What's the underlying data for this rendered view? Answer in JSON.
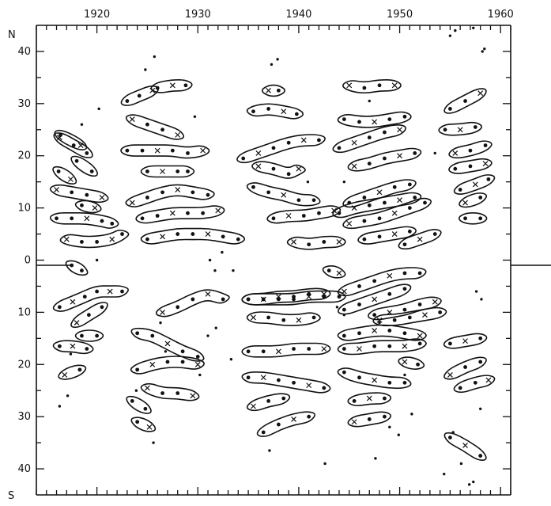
{
  "chart_data": {
    "type": "scatter",
    "title": "",
    "xlabel": "",
    "ylabel": "",
    "xlim": [
      1914,
      1961
    ],
    "ylim": [
      -45,
      45
    ],
    "x_ticks": [
      1920,
      1930,
      1940,
      1950,
      1960
    ],
    "x_tick_labels": [
      "1920",
      "1930",
      "1940",
      "1950",
      "1960"
    ],
    "y_ticks": [
      40,
      30,
      20,
      10,
      0,
      -10,
      -20,
      -30,
      -40
    ],
    "y_tick_labels": [
      "40",
      "30",
      "20",
      "10",
      "0",
      "10",
      "20",
      "30",
      "40"
    ],
    "y_pole_labels": {
      "north": "N",
      "south": "S"
    },
    "grid": false,
    "legend": "none",
    "marker_types": [
      "dot",
      "cross"
    ],
    "groups": [
      {
        "x": [
          1916.4,
          1918.4
        ],
        "y": [
          24.0,
          22.0
        ]
      },
      {
        "x": [
          1916.3,
          1917.7,
          1919.0
        ],
        "y": [
          23.5,
          22.0,
          20.5
        ]
      },
      {
        "x": [
          1918.0,
          1919.5
        ],
        "y": [
          19.0,
          17.0
        ]
      },
      {
        "x": [
          1916.2,
          1917.4
        ],
        "y": [
          17.0,
          15.5
        ]
      },
      {
        "x": [
          1916.0,
          1917.5,
          1919.0,
          1920.5
        ],
        "y": [
          13.5,
          13.0,
          12.5,
          12.0
        ]
      },
      {
        "x": [
          1916.0,
          1917.5,
          1919.0,
          1920.5,
          1921.5
        ],
        "y": [
          8.0,
          8.0,
          8.0,
          7.5,
          7.0
        ]
      },
      {
        "x": [
          1918.5,
          1919.8
        ],
        "y": [
          10.5,
          10.0
        ]
      },
      {
        "x": [
          1917.0,
          1918.5,
          1920.0,
          1921.5,
          1922.5
        ],
        "y": [
          4.0,
          3.5,
          3.5,
          4.0,
          5.0
        ]
      },
      {
        "x": [
          1917.5,
          1918.5
        ],
        "y": [
          -1.0,
          -2.0
        ]
      },
      {
        "x": [
          1916.3,
          1917.6,
          1918.8,
          1920.0,
          1921.3,
          1922.5
        ],
        "y": [
          -9.0,
          -8.0,
          -7.0,
          -6.0,
          -6.0,
          -6.0
        ]
      },
      {
        "x": [
          1918.0,
          1919.2,
          1920.5
        ],
        "y": [
          -12.0,
          -10.5,
          -9.0
        ]
      },
      {
        "x": [
          1918.5,
          1920.0
        ],
        "y": [
          -14.5,
          -14.5
        ]
      },
      {
        "x": [
          1916.3,
          1917.6,
          1919.0
        ],
        "y": [
          -16.5,
          -16.5,
          -17.0
        ]
      },
      {
        "x": [
          1916.8,
          1918.3
        ],
        "y": [
          -22.0,
          -21.0
        ]
      },
      {
        "x": [
          1923.0,
          1924.2,
          1925.5
        ],
        "y": [
          30.5,
          31.5,
          32.5
        ]
      },
      {
        "x": [
          1926.0,
          1927.5,
          1928.8
        ],
        "y": [
          33.0,
          33.5,
          33.5
        ]
      },
      {
        "x": [
          1923.5,
          1925.0,
          1926.5,
          1928.0
        ],
        "y": [
          27.0,
          26.0,
          25.0,
          24.0
        ]
      },
      {
        "x": [
          1923.0,
          1924.5,
          1926.0,
          1927.5,
          1929.0,
          1930.5
        ],
        "y": [
          21.0,
          21.0,
          21.0,
          21.0,
          20.5,
          21.0
        ]
      },
      {
        "x": [
          1925.0,
          1926.5,
          1928.0,
          1929.0
        ],
        "y": [
          17.0,
          17.0,
          17.0,
          17.0
        ]
      },
      {
        "x": [
          1923.5,
          1925.0,
          1926.5,
          1928.0,
          1929.5,
          1931.0
        ],
        "y": [
          11.0,
          12.0,
          13.0,
          13.5,
          13.0,
          12.5
        ]
      },
      {
        "x": [
          1924.5,
          1926.0,
          1927.5,
          1929.0,
          1930.5,
          1932.0
        ],
        "y": [
          8.0,
          8.5,
          9.0,
          9.0,
          9.0,
          9.5
        ]
      },
      {
        "x": [
          1925.0,
          1926.5,
          1928.0,
          1929.5,
          1931.0,
          1932.5,
          1934.0
        ],
        "y": [
          4.0,
          4.5,
          5.0,
          5.0,
          5.0,
          4.5,
          4.0
        ]
      },
      {
        "x": [
          1926.5,
          1928.0,
          1929.5,
          1931.0,
          1932.5
        ],
        "y": [
          -10.0,
          -9.0,
          -7.5,
          -6.5,
          -7.5
        ]
      },
      {
        "x": [
          1924.0,
          1925.5,
          1927.0,
          1928.5,
          1930.0
        ],
        "y": [
          -14.0,
          -14.5,
          -16.0,
          -17.5,
          -18.5
        ]
      },
      {
        "x": [
          1924.0,
          1925.5,
          1927.0,
          1928.5,
          1930.0
        ],
        "y": [
          -21.0,
          -20.0,
          -19.5,
          -19.5,
          -20.0
        ]
      },
      {
        "x": [
          1925.0,
          1926.5,
          1928.0,
          1929.5
        ],
        "y": [
          -24.5,
          -25.5,
          -25.5,
          -26.0
        ]
      },
      {
        "x": [
          1923.5,
          1924.8
        ],
        "y": [
          -27.0,
          -28.5
        ]
      },
      {
        "x": [
          1924.0,
          1925.2
        ],
        "y": [
          -31.0,
          -32.0
        ]
      },
      {
        "x": [
          1937.0,
          1938.0
        ],
        "y": [
          32.5,
          32.5
        ]
      },
      {
        "x": [
          1935.5,
          1937.0,
          1938.5,
          1939.8
        ],
        "y": [
          28.5,
          29.0,
          28.5,
          28.0
        ]
      },
      {
        "x": [
          1934.5,
          1936.0,
          1937.5,
          1939.0,
          1940.5,
          1942.0
        ],
        "y": [
          19.5,
          20.5,
          21.5,
          22.5,
          23.0,
          23.0
        ]
      },
      {
        "x": [
          1936.0,
          1937.5,
          1939.0,
          1940.0
        ],
        "y": [
          18.0,
          17.5,
          16.5,
          17.5
        ]
      },
      {
        "x": [
          1935.5,
          1937.0,
          1938.5,
          1940.0,
          1941.5
        ],
        "y": [
          14.0,
          13.0,
          12.5,
          11.5,
          11.5
        ]
      },
      {
        "x": [
          1937.5,
          1939.0,
          1940.5,
          1942.0,
          1943.5
        ],
        "y": [
          8.0,
          8.5,
          8.5,
          9.0,
          9.5
        ]
      },
      {
        "x": [
          1939.5,
          1941.0,
          1942.5,
          1944.0
        ],
        "y": [
          3.5,
          3.0,
          3.5,
          3.5
        ]
      },
      {
        "x": [
          1935.0,
          1936.5,
          1938.0,
          1939.5,
          1941.0,
          1942.5
        ],
        "y": [
          -7.5,
          -7.5,
          -7.0,
          -7.0,
          -6.5,
          -6.5
        ]
      },
      {
        "x": [
          1935.0,
          1936.5,
          1938.0,
          1939.5,
          1941.0,
          1942.5,
          1944.0
        ],
        "y": [
          -7.5,
          -7.5,
          -7.5,
          -7.5,
          -7.0,
          -7.0,
          -7.0
        ]
      },
      {
        "x": [
          1935.5,
          1937.0,
          1938.5,
          1940.0,
          1941.5
        ],
        "y": [
          -11.0,
          -11.0,
          -11.5,
          -11.5,
          -11.0
        ]
      },
      {
        "x": [
          1935.0,
          1936.5,
          1938.0,
          1939.5,
          1941.0,
          1942.5
        ],
        "y": [
          -17.5,
          -17.5,
          -17.5,
          -17.0,
          -17.0,
          -17.0
        ]
      },
      {
        "x": [
          1935.0,
          1936.5,
          1938.0,
          1939.5,
          1941.0,
          1942.5
        ],
        "y": [
          -22.5,
          -22.5,
          -23.0,
          -23.5,
          -24.0,
          -24.5
        ]
      },
      {
        "x": [
          1935.5,
          1937.0,
          1938.5
        ],
        "y": [
          -28.0,
          -27.0,
          -26.5
        ]
      },
      {
        "x": [
          1936.5,
          1938.0,
          1939.5,
          1941.0
        ],
        "y": [
          -33.0,
          -31.5,
          -30.5,
          -30.0
        ]
      },
      {
        "x": [
          1943.0,
          1944.0
        ],
        "y": [
          -2.0,
          -2.5
        ]
      },
      {
        "x": [
          1945.0,
          1946.5,
          1948.0,
          1949.5
        ],
        "y": [
          33.5,
          33.0,
          33.5,
          33.5
        ]
      },
      {
        "x": [
          1944.5,
          1946.0,
          1947.5,
          1949.0,
          1950.5
        ],
        "y": [
          27.0,
          26.5,
          26.5,
          27.0,
          27.5
        ]
      },
      {
        "x": [
          1944.0,
          1945.5,
          1947.0,
          1948.5,
          1950.0
        ],
        "y": [
          21.5,
          22.5,
          23.5,
          24.5,
          25.0
        ]
      },
      {
        "x": [
          1945.5,
          1947.0,
          1948.5,
          1950.0,
          1951.5
        ],
        "y": [
          18.0,
          18.5,
          19.5,
          20.0,
          20.5
        ]
      },
      {
        "x": [
          1945.0,
          1946.5,
          1948.0,
          1949.5,
          1951.0
        ],
        "y": [
          11.0,
          12.0,
          13.0,
          14.0,
          14.5
        ]
      },
      {
        "x": [
          1944.0,
          1945.5,
          1947.0,
          1948.5,
          1950.0,
          1951.5
        ],
        "y": [
          9.0,
          10.0,
          10.5,
          11.0,
          11.5,
          12.0
        ]
      },
      {
        "x": [
          1945.0,
          1946.5,
          1948.0,
          1949.5,
          1951.0,
          1952.5
        ],
        "y": [
          7.0,
          7.5,
          8.0,
          9.0,
          10.0,
          11.0
        ]
      },
      {
        "x": [
          1946.5,
          1948.0,
          1949.5,
          1951.0
        ],
        "y": [
          4.0,
          4.5,
          5.0,
          5.5
        ]
      },
      {
        "x": [
          1950.5,
          1952.0,
          1953.5
        ],
        "y": [
          3.0,
          4.0,
          5.0
        ]
      },
      {
        "x": [
          1944.5,
          1946.0,
          1947.5,
          1949.0,
          1950.5,
          1952.0
        ],
        "y": [
          -6.0,
          -5.0,
          -4.0,
          -3.0,
          -2.5,
          -2.5
        ]
      },
      {
        "x": [
          1944.5,
          1946.0,
          1947.5,
          1949.0,
          1950.5
        ],
        "y": [
          -9.5,
          -8.5,
          -7.5,
          -6.5,
          -5.5
        ]
      },
      {
        "x": [
          1947.5,
          1949.0,
          1950.5,
          1952.0,
          1953.5
        ],
        "y": [
          -10.5,
          -10.0,
          -9.5,
          -8.5,
          -8.0
        ]
      },
      {
        "x": [
          1948.0,
          1949.5,
          1951.0,
          1952.5,
          1954.0
        ],
        "y": [
          -11.5,
          -11.5,
          -11.0,
          -10.5,
          -10.0
        ]
      },
      {
        "x": [
          1944.5,
          1946.0,
          1947.5,
          1949.0,
          1950.5,
          1952.0
        ],
        "y": [
          -14.5,
          -14.0,
          -13.5,
          -13.5,
          -14.0,
          -14.5
        ]
      },
      {
        "x": [
          1944.5,
          1946.0,
          1947.5,
          1949.0,
          1950.5,
          1952.0
        ],
        "y": [
          -17.0,
          -17.0,
          -16.5,
          -16.5,
          -16.5,
          -16.0
        ]
      },
      {
        "x": [
          1950.5,
          1951.8
        ],
        "y": [
          -19.5,
          -20.0
        ]
      },
      {
        "x": [
          1944.5,
          1946.0,
          1947.5,
          1949.0,
          1950.5
        ],
        "y": [
          -21.5,
          -22.5,
          -23.0,
          -23.5,
          -23.5
        ]
      },
      {
        "x": [
          1945.5,
          1947.0,
          1948.5
        ],
        "y": [
          -27.0,
          -26.5,
          -26.5
        ]
      },
      {
        "x": [
          1945.5,
          1947.0,
          1948.5
        ],
        "y": [
          -31.0,
          -30.5,
          -30.0
        ]
      },
      {
        "x": [
          1955.0,
          1956.5,
          1958.0
        ],
        "y": [
          29.0,
          30.5,
          32.0
        ]
      },
      {
        "x": [
          1954.5,
          1956.0,
          1957.5
        ],
        "y": [
          25.0,
          25.0,
          25.5
        ]
      },
      {
        "x": [
          1955.5,
          1957.0,
          1958.5
        ],
        "y": [
          20.5,
          21.0,
          22.0
        ]
      },
      {
        "x": [
          1955.5,
          1957.0,
          1958.5
        ],
        "y": [
          17.5,
          18.0,
          18.5
        ]
      },
      {
        "x": [
          1956.0,
          1957.5,
          1958.8
        ],
        "y": [
          13.5,
          14.5,
          15.5
        ]
      },
      {
        "x": [
          1956.5,
          1958.0
        ],
        "y": [
          11.0,
          12.0
        ]
      },
      {
        "x": [
          1956.5,
          1958.0
        ],
        "y": [
          8.0,
          8.0
        ]
      },
      {
        "x": [
          1955.0,
          1956.5,
          1958.0
        ],
        "y": [
          -16.0,
          -15.5,
          -15.0
        ]
      },
      {
        "x": [
          1955.0,
          1956.5,
          1958.0
        ],
        "y": [
          -22.0,
          -20.5,
          -19.5
        ]
      },
      {
        "x": [
          1956.0,
          1957.5,
          1958.8
        ],
        "y": [
          -24.5,
          -23.5,
          -23.0
        ]
      },
      {
        "x": [
          1955.0,
          1956.5,
          1958.0
        ],
        "y": [
          -34.0,
          -35.5,
          -37.5
        ]
      }
    ],
    "scattered_points": {
      "x": [
        1918.5,
        1920.2,
        1924.8,
        1925.7,
        1929.7,
        1931.2,
        1931.7,
        1932.4,
        1933.5,
        1937.3,
        1937.9,
        1940.9,
        1944.5,
        1947.0,
        1953.5,
        1955.0,
        1955.5,
        1957.3,
        1958.2,
        1958.4,
        1917.1,
        1917.4,
        1920.0,
        1926.8,
        1930.2,
        1931.0,
        1931.8,
        1933.3,
        1943.8,
        1944.5,
        1948.0,
        1949.0,
        1950.5,
        1951.2,
        1955.3,
        1957.6,
        1958.1,
        1926.3,
        1916.3,
        1923.9,
        1925.6,
        1937.1,
        1942.6,
        1947.6,
        1949.9,
        1954.4,
        1956.1,
        1956.9,
        1957.3,
        1958.0
      ],
      "y": [
        26.0,
        29.0,
        36.5,
        39.0,
        27.5,
        0.0,
        -2.0,
        1.5,
        -2.0,
        37.5,
        38.5,
        15.0,
        15.0,
        30.5,
        20.5,
        43.0,
        44.0,
        44.5,
        40.0,
        40.5,
        -26.0,
        -18.0,
        0.0,
        -17.5,
        -22.0,
        -14.5,
        -13.0,
        -19.0,
        -9.0,
        -10.5,
        -12.0,
        -32.0,
        -22.0,
        -29.5,
        -33.0,
        -6.0,
        -7.5,
        -12.0,
        -28.0,
        -25.0,
        -35.0,
        -36.5,
        -39.0,
        -38.0,
        -33.5,
        -41.0,
        -39.0,
        -43.0,
        -42.5,
        -28.5
      ]
    }
  }
}
